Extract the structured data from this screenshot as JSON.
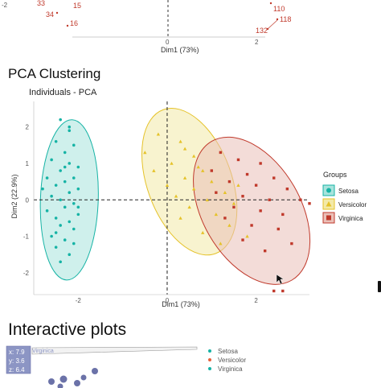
{
  "top_plot": {
    "xlabel": "Dim1 (73%)",
    "y_tick": "-2",
    "x_ticks": [
      "0",
      "2"
    ],
    "labels": [
      {
        "text": "33",
        "color": "#c0392b"
      },
      {
        "text": "15",
        "color": "#c0392b"
      },
      {
        "text": "34",
        "color": "#c0392b"
      },
      {
        "text": "16",
        "color": "#c0392b"
      },
      {
        "text": "110",
        "color": "#c0392b"
      },
      {
        "text": "118",
        "color": "#c0392b"
      },
      {
        "text": "132",
        "color": "#c0392b"
      }
    ]
  },
  "pca_section": {
    "heading": "PCA Clustering"
  },
  "chart_data": {
    "type": "scatter",
    "title": "Individuals - PCA",
    "xlabel": "Dim1 (73%)",
    "ylabel": "Dim2 (22.9%)",
    "xlim": [
      -3.0,
      3.2
    ],
    "ylim": [
      -2.6,
      2.7
    ],
    "x_ticks": [
      -2,
      0,
      2
    ],
    "y_ticks": [
      -2,
      -1,
      0,
      1,
      2
    ],
    "grid": false,
    "legend": {
      "title": "Groups",
      "placement": "right"
    },
    "series": [
      {
        "name": "Setosa",
        "color": "#16b3a5",
        "fill": "#a8e3dc",
        "marker": "circle",
        "ellipse": {
          "cx": -2.2,
          "cy": 0.0,
          "rx": 0.65,
          "ry": 2.2,
          "angle": 2
        },
        "points": [
          [
            -2.4,
            2.2
          ],
          [
            -2.2,
            2.0
          ],
          [
            -2.5,
            1.6
          ],
          [
            -2.1,
            1.5
          ],
          [
            -2.3,
            1.3
          ],
          [
            -2.6,
            1.1
          ],
          [
            -2.2,
            1.0
          ],
          [
            -2.0,
            0.9
          ],
          [
            -2.4,
            0.8
          ],
          [
            -2.7,
            0.6
          ],
          [
            -2.1,
            0.6
          ],
          [
            -2.3,
            0.5
          ],
          [
            -2.5,
            0.4
          ],
          [
            -2.0,
            0.3
          ],
          [
            -2.2,
            0.2
          ],
          [
            -2.6,
            0.1
          ],
          [
            -2.4,
            0.0
          ],
          [
            -2.1,
            -0.1
          ],
          [
            -2.3,
            -0.2
          ],
          [
            -2.7,
            -0.3
          ],
          [
            -2.0,
            -0.4
          ],
          [
            -2.5,
            -0.5
          ],
          [
            -2.2,
            -0.6
          ],
          [
            -2.4,
            -0.7
          ],
          [
            -2.1,
            -0.8
          ],
          [
            -2.6,
            -1.0
          ],
          [
            -2.3,
            -1.1
          ],
          [
            -2.5,
            -1.3
          ],
          [
            -2.2,
            -1.5
          ],
          [
            -2.4,
            -1.7
          ],
          [
            -2.0,
            -0.2
          ],
          [
            -2.8,
            0.3
          ],
          [
            -2.3,
            0.9
          ],
          [
            -2.5,
            -0.9
          ],
          [
            -2.2,
            1.9
          ],
          [
            -2.1,
            -1.2
          ]
        ]
      },
      {
        "name": "Versicolor",
        "color": "#e5c229",
        "fill": "#f3e9a8",
        "marker": "triangle",
        "ellipse": {
          "cx": 0.5,
          "cy": 0.5,
          "rx": 0.95,
          "ry": 2.1,
          "angle": -20
        },
        "points": [
          [
            -0.2,
            1.8
          ],
          [
            0.3,
            1.6
          ],
          [
            -0.5,
            1.3
          ],
          [
            0.6,
            1.2
          ],
          [
            0.1,
            1.0
          ],
          [
            -0.3,
            0.8
          ],
          [
            0.8,
            0.8
          ],
          [
            0.4,
            0.6
          ],
          [
            1.0,
            0.5
          ],
          [
            0.0,
            0.4
          ],
          [
            0.6,
            0.3
          ],
          [
            1.3,
            0.2
          ],
          [
            0.2,
            0.1
          ],
          [
            0.9,
            0.0
          ],
          [
            1.5,
            -0.1
          ],
          [
            0.5,
            -0.2
          ],
          [
            1.1,
            -0.4
          ],
          [
            0.3,
            -0.5
          ],
          [
            1.4,
            -0.7
          ],
          [
            0.8,
            -0.9
          ],
          [
            1.8,
            -1.0
          ],
          [
            1.2,
            -1.2
          ],
          [
            0.7,
            0.9
          ],
          [
            0.4,
            1.4
          ],
          [
            1.6,
            0.4
          ]
        ]
      },
      {
        "name": "Virginica",
        "color": "#c0392b",
        "fill": "#eac0b8",
        "marker": "square",
        "ellipse": {
          "cx": 1.9,
          "cy": -0.3,
          "rx": 1.1,
          "ry": 2.2,
          "angle": -30
        },
        "points": [
          [
            1.2,
            1.3
          ],
          [
            1.6,
            1.1
          ],
          [
            2.1,
            1.0
          ],
          [
            1.0,
            0.8
          ],
          [
            1.8,
            0.7
          ],
          [
            2.4,
            0.6
          ],
          [
            1.4,
            0.5
          ],
          [
            2.0,
            0.4
          ],
          [
            2.7,
            0.3
          ],
          [
            1.1,
            0.2
          ],
          [
            1.7,
            0.1
          ],
          [
            2.3,
            0.0
          ],
          [
            3.0,
            0.0
          ],
          [
            1.5,
            -0.2
          ],
          [
            2.1,
            -0.3
          ],
          [
            2.6,
            -0.4
          ],
          [
            1.3,
            -0.5
          ],
          [
            1.9,
            -0.7
          ],
          [
            2.5,
            -0.8
          ],
          [
            2.8,
            -1.2
          ],
          [
            2.2,
            -1.4
          ],
          [
            1.7,
            -1.1
          ],
          [
            2.4,
            -2.5
          ],
          [
            2.6,
            -2.5
          ],
          [
            3.2,
            -0.1
          ]
        ]
      }
    ]
  },
  "interactive_section": {
    "heading": "Interactive plots",
    "tooltip": {
      "x_label": "x: 7.9",
      "y_label": "y: 3.6",
      "z_label": "z: 6.4",
      "series": "Virginica"
    },
    "legend": [
      {
        "label": "Setosa",
        "color": "#16b3a5"
      },
      {
        "label": "Versicolor",
        "color": "#e8603c"
      },
      {
        "label": "Virginica",
        "color": "#16b3a5"
      }
    ],
    "point_color": "#6b72a8"
  },
  "scrollbar": {
    "color": "#111111"
  }
}
